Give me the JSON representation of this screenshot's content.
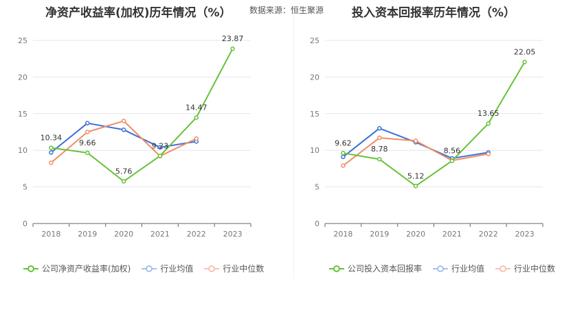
{
  "source": "数据来源：恒生聚源",
  "colors": {
    "company": "#65c237",
    "avg": "#3b6fd8",
    "median": "#f08c65"
  },
  "chart_data": [
    {
      "type": "line",
      "title": "净资产收益率(加权)历年情况（%）",
      "categories": [
        "2018",
        "2019",
        "2020",
        "2021",
        "2022",
        "2023"
      ],
      "yticks": [
        0,
        5,
        10,
        15,
        20,
        25
      ],
      "ylim": [
        0,
        25
      ],
      "grid": true,
      "legend_position": "bottom",
      "series": [
        {
          "name": "公司净资产收益率(加权)",
          "key": "company",
          "values": [
            10.34,
            9.66,
            5.76,
            9.23,
            14.47,
            23.87
          ],
          "labels": [
            "10.34",
            "9.66",
            "5.76",
            "9.23",
            "14.47",
            "23.87"
          ]
        },
        {
          "name": "行业均值",
          "key": "avg",
          "values": [
            9.7,
            13.7,
            12.8,
            10.4,
            11.2,
            null
          ]
        },
        {
          "name": "行业中位数",
          "key": "median",
          "values": [
            8.3,
            12.5,
            14.0,
            9.2,
            11.6,
            null
          ]
        }
      ]
    },
    {
      "type": "line",
      "title": "投入资本回报率历年情况（%）",
      "categories": [
        "2018",
        "2019",
        "2020",
        "2021",
        "2022",
        "2023"
      ],
      "yticks": [
        0,
        5,
        10,
        15,
        20,
        25
      ],
      "ylim": [
        0,
        25
      ],
      "grid": true,
      "legend_position": "bottom",
      "series": [
        {
          "name": "公司投入资本回报率",
          "key": "company",
          "values": [
            9.62,
            8.78,
            5.12,
            8.56,
            13.65,
            22.05
          ],
          "labels": [
            "9.62",
            "8.78",
            "5.12",
            "8.56",
            "13.65",
            "22.05"
          ]
        },
        {
          "name": "行业均值",
          "key": "avg",
          "values": [
            9.1,
            13.0,
            11.1,
            8.9,
            9.7,
            null
          ]
        },
        {
          "name": "行业中位数",
          "key": "median",
          "values": [
            7.9,
            11.7,
            11.3,
            8.6,
            9.5,
            null
          ]
        }
      ]
    }
  ]
}
